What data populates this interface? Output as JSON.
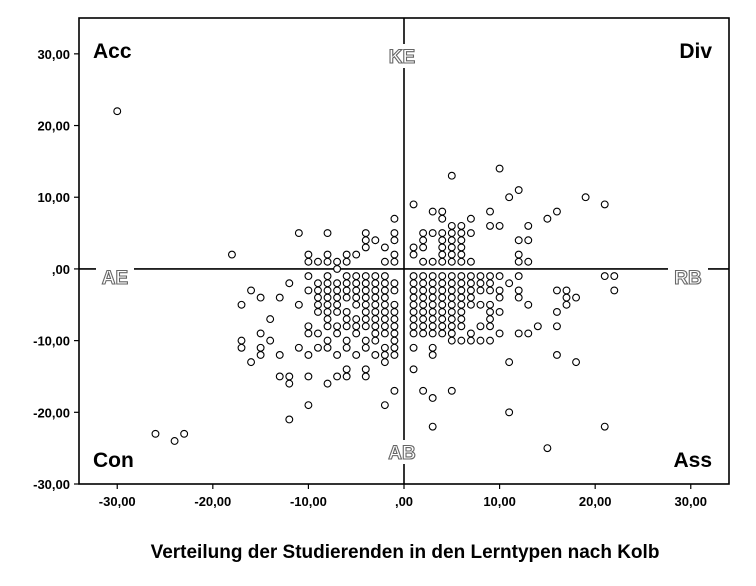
{
  "chart_data": {
    "type": "scatter",
    "title": "Verteilung der Studierenden in den Lerntypen nach Kolb",
    "xlim": [
      -34,
      34
    ],
    "ylim": [
      -30,
      35
    ],
    "x_ticks": [
      -30,
      -20,
      -10,
      0,
      10,
      20,
      30
    ],
    "x_tick_labels": [
      "-30,00",
      "-20,00",
      "-10,00",
      ",00",
      "10,00",
      "20,00",
      "30,00"
    ],
    "y_ticks": [
      30,
      20,
      10,
      0,
      -10,
      -20,
      -30
    ],
    "y_tick_labels": [
      "30,00",
      "20,00",
      "10,00",
      ",00",
      "-10,00",
      "-20,00",
      "-30,00"
    ],
    "reference_lines": {
      "x": 0,
      "y": 0
    },
    "quadrant_labels": {
      "top_left": "Acc",
      "top_right": "Div",
      "bottom_left": "Con",
      "bottom_right": "Ass"
    },
    "axis_end_labels": {
      "top": "KE",
      "bottom": "AB",
      "left": "AE",
      "right": "RB"
    },
    "points": [
      [
        -30,
        22
      ],
      [
        -26,
        -23
      ],
      [
        -24,
        -24
      ],
      [
        -23,
        -23
      ],
      [
        -18,
        2
      ],
      [
        -17,
        -5
      ],
      [
        -17,
        -10
      ],
      [
        -17,
        -11
      ],
      [
        -16,
        -3
      ],
      [
        -16,
        -13
      ],
      [
        -15,
        -4
      ],
      [
        -15,
        -9
      ],
      [
        -15,
        -11
      ],
      [
        -15,
        -12
      ],
      [
        -14,
        -7
      ],
      [
        -14,
        -10
      ],
      [
        -13,
        -4
      ],
      [
        -13,
        -12
      ],
      [
        -13,
        -15
      ],
      [
        -12,
        -2
      ],
      [
        -12,
        -15
      ],
      [
        -12,
        -16
      ],
      [
        -12,
        -21
      ],
      [
        -11,
        5
      ],
      [
        -11,
        -5
      ],
      [
        -11,
        -11
      ],
      [
        -10,
        1
      ],
      [
        -10,
        2
      ],
      [
        -10,
        -1
      ],
      [
        -10,
        -3
      ],
      [
        -10,
        -8
      ],
      [
        -10,
        -9
      ],
      [
        -10,
        -12
      ],
      [
        -10,
        -15
      ],
      [
        -10,
        -19
      ],
      [
        -9,
        1
      ],
      [
        -9,
        -2
      ],
      [
        -9,
        -3
      ],
      [
        -9,
        -4
      ],
      [
        -9,
        -5
      ],
      [
        -9,
        -6
      ],
      [
        -9,
        -9
      ],
      [
        -9,
        -11
      ],
      [
        -8,
        5
      ],
      [
        -8,
        2
      ],
      [
        -8,
        1
      ],
      [
        -8,
        -1
      ],
      [
        -8,
        -2
      ],
      [
        -8,
        -3
      ],
      [
        -8,
        -4
      ],
      [
        -8,
        -5
      ],
      [
        -8,
        -6
      ],
      [
        -8,
        -7
      ],
      [
        -8,
        -8
      ],
      [
        -8,
        -10
      ],
      [
        -8,
        -11
      ],
      [
        -8,
        -16
      ],
      [
        -7,
        1
      ],
      [
        -7,
        0
      ],
      [
        -7,
        -2
      ],
      [
        -7,
        -3
      ],
      [
        -7,
        -4
      ],
      [
        -7,
        -5
      ],
      [
        -7,
        -6
      ],
      [
        -7,
        -8
      ],
      [
        -7,
        -9
      ],
      [
        -7,
        -12
      ],
      [
        -7,
        -15
      ],
      [
        -6,
        2
      ],
      [
        -6,
        1
      ],
      [
        -6,
        -1
      ],
      [
        -6,
        -2
      ],
      [
        -6,
        -3
      ],
      [
        -6,
        -4
      ],
      [
        -6,
        -6
      ],
      [
        -6,
        -7
      ],
      [
        -6,
        -8
      ],
      [
        -6,
        -10
      ],
      [
        -6,
        -11
      ],
      [
        -6,
        -14
      ],
      [
        -6,
        -15
      ],
      [
        -5,
        2
      ],
      [
        -5,
        -1
      ],
      [
        -5,
        -2
      ],
      [
        -5,
        -3
      ],
      [
        -5,
        -4
      ],
      [
        -5,
        -5
      ],
      [
        -5,
        -7
      ],
      [
        -5,
        -8
      ],
      [
        -5,
        -9
      ],
      [
        -5,
        -12
      ],
      [
        -4,
        5
      ],
      [
        -4,
        4
      ],
      [
        -4,
        3
      ],
      [
        -4,
        -1
      ],
      [
        -4,
        -2
      ],
      [
        -4,
        -3
      ],
      [
        -4,
        -4
      ],
      [
        -4,
        -5
      ],
      [
        -4,
        -6
      ],
      [
        -4,
        -7
      ],
      [
        -4,
        -8
      ],
      [
        -4,
        -10
      ],
      [
        -4,
        -11
      ],
      [
        -4,
        -14
      ],
      [
        -4,
        -15
      ],
      [
        -3,
        4
      ],
      [
        -3,
        -1
      ],
      [
        -3,
        -2
      ],
      [
        -3,
        -3
      ],
      [
        -3,
        -4
      ],
      [
        -3,
        -5
      ],
      [
        -3,
        -6
      ],
      [
        -3,
        -7
      ],
      [
        -3,
        -8
      ],
      [
        -3,
        -9
      ],
      [
        -3,
        -10
      ],
      [
        -3,
        -12
      ],
      [
        -2,
        3
      ],
      [
        -2,
        1
      ],
      [
        -2,
        -1
      ],
      [
        -2,
        -2
      ],
      [
        -2,
        -3
      ],
      [
        -2,
        -4
      ],
      [
        -2,
        -5
      ],
      [
        -2,
        -6
      ],
      [
        -2,
        -7
      ],
      [
        -2,
        -8
      ],
      [
        -2,
        -9
      ],
      [
        -2,
        -11
      ],
      [
        -2,
        -12
      ],
      [
        -2,
        -13
      ],
      [
        -2,
        -19
      ],
      [
        -1,
        7
      ],
      [
        -1,
        5
      ],
      [
        -1,
        4
      ],
      [
        -1,
        2
      ],
      [
        -1,
        1
      ],
      [
        -1,
        -2
      ],
      [
        -1,
        -3
      ],
      [
        -1,
        -5
      ],
      [
        -1,
        -6
      ],
      [
        -1,
        -7
      ],
      [
        -1,
        -8
      ],
      [
        -1,
        -9
      ],
      [
        -1,
        -10
      ],
      [
        -1,
        -11
      ],
      [
        -1,
        -12
      ],
      [
        -1,
        -17
      ],
      [
        1,
        9
      ],
      [
        1,
        3
      ],
      [
        1,
        2
      ],
      [
        1,
        -1
      ],
      [
        1,
        -2
      ],
      [
        1,
        -3
      ],
      [
        1,
        -4
      ],
      [
        1,
        -5
      ],
      [
        1,
        -6
      ],
      [
        1,
        -7
      ],
      [
        1,
        -8
      ],
      [
        1,
        -9
      ],
      [
        1,
        -11
      ],
      [
        1,
        -14
      ],
      [
        2,
        5
      ],
      [
        2,
        4
      ],
      [
        2,
        3
      ],
      [
        2,
        1
      ],
      [
        2,
        -1
      ],
      [
        2,
        -2
      ],
      [
        2,
        -3
      ],
      [
        2,
        -4
      ],
      [
        2,
        -5
      ],
      [
        2,
        -6
      ],
      [
        2,
        -7
      ],
      [
        2,
        -8
      ],
      [
        2,
        -9
      ],
      [
        2,
        -17
      ],
      [
        3,
        8
      ],
      [
        3,
        5
      ],
      [
        3,
        1
      ],
      [
        3,
        -1
      ],
      [
        3,
        -2
      ],
      [
        3,
        -3
      ],
      [
        3,
        -4
      ],
      [
        3,
        -5
      ],
      [
        3,
        -6
      ],
      [
        3,
        -7
      ],
      [
        3,
        -8
      ],
      [
        3,
        -9
      ],
      [
        3,
        -11
      ],
      [
        3,
        -12
      ],
      [
        3,
        -18
      ],
      [
        3,
        -22
      ],
      [
        4,
        8
      ],
      [
        4,
        7
      ],
      [
        4,
        5
      ],
      [
        4,
        4
      ],
      [
        4,
        3
      ],
      [
        4,
        2
      ],
      [
        4,
        1
      ],
      [
        4,
        -1
      ],
      [
        4,
        -2
      ],
      [
        4,
        -3
      ],
      [
        4,
        -4
      ],
      [
        4,
        -5
      ],
      [
        4,
        -6
      ],
      [
        4,
        -7
      ],
      [
        4,
        -8
      ],
      [
        4,
        -9
      ],
      [
        5,
        13
      ],
      [
        5,
        6
      ],
      [
        5,
        5
      ],
      [
        5,
        4
      ],
      [
        5,
        3
      ],
      [
        5,
        2
      ],
      [
        5,
        1
      ],
      [
        5,
        -1
      ],
      [
        5,
        -2
      ],
      [
        5,
        -3
      ],
      [
        5,
        -4
      ],
      [
        5,
        -5
      ],
      [
        5,
        -6
      ],
      [
        5,
        -7
      ],
      [
        5,
        -8
      ],
      [
        5,
        -9
      ],
      [
        5,
        -10
      ],
      [
        5,
        -17
      ],
      [
        6,
        6
      ],
      [
        6,
        5
      ],
      [
        6,
        4
      ],
      [
        6,
        3
      ],
      [
        6,
        2
      ],
      [
        6,
        1
      ],
      [
        6,
        -1
      ],
      [
        6,
        -2
      ],
      [
        6,
        -3
      ],
      [
        6,
        -4
      ],
      [
        6,
        -5
      ],
      [
        6,
        -6
      ],
      [
        6,
        -7
      ],
      [
        6,
        -8
      ],
      [
        6,
        -10
      ],
      [
        7,
        7
      ],
      [
        7,
        5
      ],
      [
        7,
        1
      ],
      [
        7,
        -1
      ],
      [
        7,
        -2
      ],
      [
        7,
        -3
      ],
      [
        7,
        -4
      ],
      [
        7,
        -5
      ],
      [
        7,
        -9
      ],
      [
        7,
        -10
      ],
      [
        8,
        -1
      ],
      [
        8,
        -2
      ],
      [
        8,
        -3
      ],
      [
        8,
        -5
      ],
      [
        8,
        -8
      ],
      [
        8,
        -10
      ],
      [
        9,
        8
      ],
      [
        9,
        6
      ],
      [
        9,
        -1
      ],
      [
        9,
        -2
      ],
      [
        9,
        -3
      ],
      [
        9,
        -5
      ],
      [
        9,
        -6
      ],
      [
        9,
        -7
      ],
      [
        9,
        -8
      ],
      [
        9,
        -10
      ],
      [
        10,
        14
      ],
      [
        10,
        6
      ],
      [
        10,
        -1
      ],
      [
        10,
        -3
      ],
      [
        10,
        -4
      ],
      [
        10,
        -6
      ],
      [
        10,
        -9
      ],
      [
        11,
        10
      ],
      [
        11,
        -2
      ],
      [
        11,
        -13
      ],
      [
        11,
        -20
      ],
      [
        12,
        11
      ],
      [
        12,
        4
      ],
      [
        12,
        2
      ],
      [
        12,
        1
      ],
      [
        12,
        -1
      ],
      [
        12,
        -3
      ],
      [
        12,
        -4
      ],
      [
        12,
        -9
      ],
      [
        13,
        6
      ],
      [
        13,
        4
      ],
      [
        13,
        1
      ],
      [
        13,
        -5
      ],
      [
        13,
        -9
      ],
      [
        14,
        -8
      ],
      [
        15,
        7
      ],
      [
        15,
        -25
      ],
      [
        16,
        8
      ],
      [
        16,
        -3
      ],
      [
        16,
        -6
      ],
      [
        16,
        -8
      ],
      [
        16,
        -12
      ],
      [
        17,
        -3
      ],
      [
        17,
        -4
      ],
      [
        17,
        -5
      ],
      [
        18,
        -4
      ],
      [
        18,
        -13
      ],
      [
        19,
        10
      ],
      [
        21,
        9
      ],
      [
        21,
        -1
      ],
      [
        21,
        -22
      ],
      [
        22,
        -1
      ],
      [
        22,
        -3
      ]
    ]
  }
}
